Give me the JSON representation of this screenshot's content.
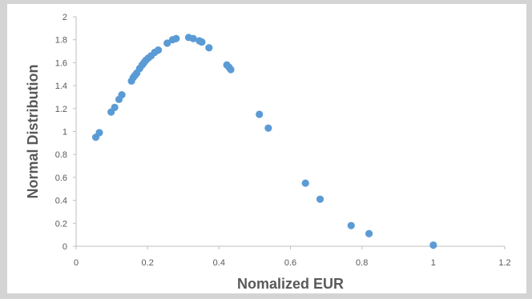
{
  "chart_data": {
    "type": "scatter",
    "title": "",
    "xlabel": "Nomalized EUR",
    "ylabel": "Normal Distribution",
    "xlim": [
      0,
      1.2
    ],
    "ylim": [
      0,
      2
    ],
    "x_ticks": [
      "0",
      "0.2",
      "0.4",
      "0.6",
      "0.8",
      "1",
      "1.2"
    ],
    "y_ticks": [
      "0",
      "0.2",
      "0.4",
      "0.6",
      "0.8",
      "1",
      "1.2",
      "1.4",
      "1.6",
      "1.8",
      "2"
    ],
    "grid": false,
    "legend": "none",
    "marker_color": "#5b9bd5",
    "series": [
      {
        "x": [
          0.055,
          0.065,
          0.098,
          0.108,
          0.12,
          0.128,
          0.155,
          0.16,
          0.165,
          0.17,
          0.178,
          0.185,
          0.19,
          0.195,
          0.202,
          0.21,
          0.22,
          0.23,
          0.255,
          0.27,
          0.28,
          0.315,
          0.328,
          0.345,
          0.352,
          0.372,
          0.422,
          0.428,
          0.433,
          0.513,
          0.538,
          0.642,
          0.683,
          0.77,
          0.82,
          1.0
        ],
        "y": [
          0.95,
          0.99,
          1.17,
          1.21,
          1.28,
          1.32,
          1.44,
          1.47,
          1.49,
          1.51,
          1.55,
          1.58,
          1.6,
          1.62,
          1.64,
          1.66,
          1.69,
          1.71,
          1.77,
          1.8,
          1.81,
          1.82,
          1.81,
          1.79,
          1.78,
          1.73,
          1.58,
          1.56,
          1.54,
          1.15,
          1.03,
          0.55,
          0.41,
          0.18,
          0.11,
          0.01
        ]
      }
    ]
  }
}
